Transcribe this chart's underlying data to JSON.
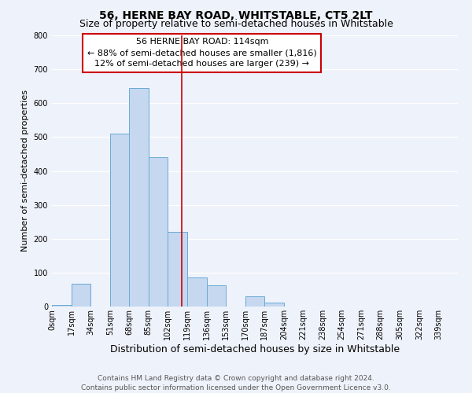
{
  "title": "56, HERNE BAY ROAD, WHITSTABLE, CT5 2LT",
  "subtitle": "Size of property relative to semi-detached houses in Whitstable",
  "bar_labels": [
    "0sqm",
    "17sqm",
    "34sqm",
    "51sqm",
    "68sqm",
    "85sqm",
    "102sqm",
    "119sqm",
    "136sqm",
    "153sqm",
    "170sqm",
    "187sqm",
    "204sqm",
    "221sqm",
    "238sqm",
    "254sqm",
    "271sqm",
    "288sqm",
    "305sqm",
    "322sqm",
    "339sqm"
  ],
  "bar_heights": [
    5,
    68,
    0,
    510,
    645,
    440,
    220,
    85,
    63,
    0,
    30,
    12,
    0,
    0,
    0,
    0,
    0,
    0,
    0,
    0,
    0
  ],
  "bar_color": "#c5d8f0",
  "bar_edge_color": "#6aaad4",
  "annotation_line_color": "#cc0000",
  "annotation_box_text": "56 HERNE BAY ROAD: 114sqm\n← 88% of semi-detached houses are smaller (1,816)\n12% of semi-detached houses are larger (239) →",
  "xlabel": "Distribution of semi-detached houses by size in Whitstable",
  "ylabel": "Number of semi-detached properties",
  "ylim": [
    0,
    800
  ],
  "yticks": [
    0,
    100,
    200,
    300,
    400,
    500,
    600,
    700,
    800
  ],
  "footer_line1": "Contains HM Land Registry data © Crown copyright and database right 2024.",
  "footer_line2": "Contains public sector information licensed under the Open Government Licence v3.0.",
  "background_color": "#eef2fa",
  "grid_color": "#ffffff",
  "title_fontsize": 10,
  "subtitle_fontsize": 9,
  "xlabel_fontsize": 9,
  "ylabel_fontsize": 8,
  "tick_fontsize": 7,
  "annot_fontsize": 8,
  "footer_fontsize": 6.5
}
